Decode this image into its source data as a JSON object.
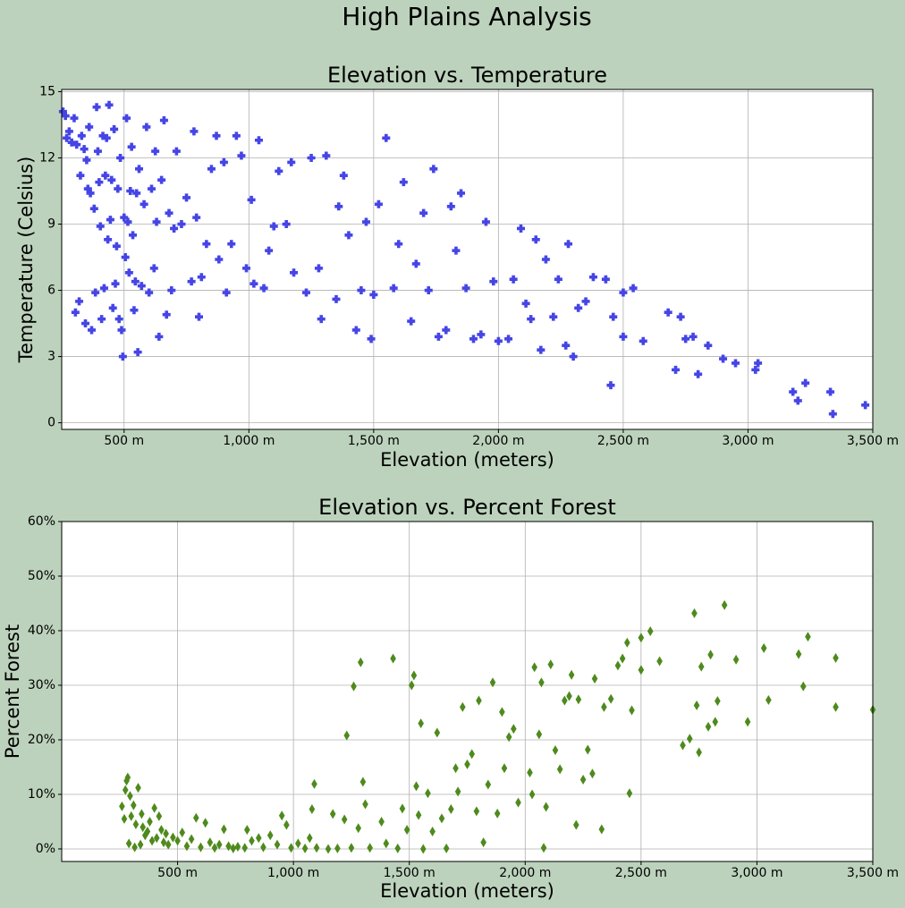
{
  "title": "High Plains Analysis",
  "chart_data": [
    {
      "type": "scatter",
      "title": "Elevation vs. Temperature",
      "x_label": "Elevation (meters)",
      "y_label": "Temperature (Celsius)",
      "grid": true,
      "marker": "plus",
      "xlim": [
        250,
        3500
      ],
      "ylim": [
        -0.3,
        15.1
      ],
      "xticks": [
        {
          "value": 500,
          "label": "500 m"
        },
        {
          "value": 1000,
          "label": "1,000 m"
        },
        {
          "value": 1500,
          "label": "1,500 m"
        },
        {
          "value": 2000,
          "label": "2,000 m"
        },
        {
          "value": 2500,
          "label": "2,500 m"
        },
        {
          "value": 3000,
          "label": "3,000 m"
        },
        {
          "value": 3500,
          "label": "3,500 m"
        }
      ],
      "yticks": [
        0,
        3,
        6,
        9,
        12,
        15
      ],
      "series": [
        {
          "color": "#4545e6",
          "x": [
            255,
            265,
            270,
            280,
            290,
            300,
            305,
            310,
            320,
            325,
            330,
            340,
            345,
            350,
            355,
            360,
            365,
            370,
            380,
            385,
            390,
            395,
            400,
            405,
            410,
            415,
            420,
            425,
            430,
            435,
            440,
            445,
            450,
            455,
            460,
            465,
            470,
            475,
            480,
            485,
            490,
            495,
            500,
            505,
            510,
            515,
            520,
            525,
            530,
            535,
            540,
            545,
            550,
            555,
            560,
            570,
            580,
            590,
            600,
            610,
            620,
            625,
            630,
            640,
            650,
            660,
            670,
            680,
            690,
            700,
            710,
            730,
            750,
            770,
            780,
            790,
            800,
            810,
            830,
            850,
            870,
            880,
            900,
            910,
            930,
            950,
            970,
            990,
            1010,
            1020,
            1040,
            1060,
            1080,
            1100,
            1120,
            1150,
            1170,
            1180,
            1230,
            1250,
            1280,
            1290,
            1310,
            1350,
            1360,
            1380,
            1400,
            1430,
            1450,
            1470,
            1490,
            1500,
            1520,
            1550,
            1580,
            1600,
            1620,
            1650,
            1670,
            1700,
            1720,
            1740,
            1760,
            1790,
            1810,
            1830,
            1850,
            1870,
            1900,
            1930,
            1950,
            1980,
            2000,
            2040,
            2060,
            2090,
            2110,
            2130,
            2150,
            2170,
            2190,
            2220,
            2240,
            2270,
            2280,
            2300,
            2320,
            2350,
            2380,
            2430,
            2450,
            2460,
            2500,
            2500,
            2540,
            2580,
            2680,
            2710,
            2730,
            2750,
            2780,
            2800,
            2840,
            2900,
            2950,
            3030,
            3040,
            3180,
            3200,
            3230,
            3330,
            3340,
            3470
          ],
          "values": [
            14.1,
            13.9,
            12.9,
            13.2,
            12.7,
            13.8,
            5.0,
            12.6,
            5.5,
            11.2,
            13.0,
            12.4,
            4.5,
            11.9,
            10.6,
            13.4,
            10.4,
            4.2,
            9.7,
            5.9,
            14.3,
            12.3,
            10.9,
            8.9,
            4.7,
            13.0,
            6.1,
            11.2,
            12.9,
            8.3,
            14.4,
            9.2,
            11.0,
            5.2,
            13.3,
            6.3,
            8.0,
            10.6,
            4.7,
            12.0,
            4.2,
            3.0,
            9.3,
            7.5,
            13.8,
            9.1,
            6.8,
            10.5,
            12.5,
            8.5,
            5.1,
            6.4,
            10.4,
            3.2,
            11.5,
            6.2,
            9.9,
            13.4,
            5.9,
            10.6,
            7.0,
            12.3,
            9.1,
            3.9,
            11.0,
            13.7,
            4.9,
            9.5,
            6.0,
            8.8,
            12.3,
            9.0,
            10.2,
            6.4,
            13.2,
            9.3,
            4.8,
            6.6,
            8.1,
            11.5,
            13.0,
            7.4,
            11.8,
            5.9,
            8.1,
            13.0,
            12.1,
            7.0,
            10.1,
            6.3,
            12.8,
            6.1,
            7.8,
            8.9,
            11.4,
            9.0,
            11.8,
            6.8,
            5.9,
            12.0,
            7.0,
            4.7,
            12.1,
            5.6,
            9.8,
            11.2,
            8.5,
            4.2,
            6.0,
            9.1,
            3.8,
            5.8,
            9.9,
            12.9,
            6.1,
            8.1,
            10.9,
            4.6,
            7.2,
            9.5,
            6.0,
            11.5,
            3.9,
            4.2,
            9.8,
            7.8,
            10.4,
            6.1,
            3.8,
            4.0,
            9.1,
            6.4,
            3.7,
            3.8,
            6.5,
            8.8,
            5.4,
            4.7,
            8.3,
            3.3,
            7.4,
            4.8,
            6.5,
            3.5,
            8.1,
            3.0,
            5.2,
            5.5,
            6.6,
            6.5,
            1.7,
            4.8,
            5.9,
            3.9,
            6.1,
            3.7,
            5.0,
            2.4,
            4.8,
            3.8,
            3.9,
            2.2,
            3.5,
            2.9,
            2.7,
            2.4,
            2.7,
            1.4,
            1.0,
            1.8,
            1.4,
            0.4,
            0.8
          ]
        }
      ]
    },
    {
      "type": "scatter",
      "title": "Elevation vs. Percent Forest",
      "x_label": "Elevation (meters)",
      "y_label": "Percent Forest",
      "grid": true,
      "marker": "thin_diamond",
      "xlim": [
        0,
        3500
      ],
      "ylim": [
        -2.3,
        60
      ],
      "xticks": [
        {
          "value": 500,
          "label": "500 m"
        },
        {
          "value": 1000,
          "label": "1,000 m"
        },
        {
          "value": 1500,
          "label": "1,500 m"
        },
        {
          "value": 2000,
          "label": "2,000 m"
        },
        {
          "value": 2500,
          "label": "2,500 m"
        },
        {
          "value": 3000,
          "label": "3,000 m"
        },
        {
          "value": 3500,
          "label": "3,500 m"
        }
      ],
      "yticks": [
        {
          "value": 0,
          "label": "0%"
        },
        {
          "value": 10,
          "label": "10%"
        },
        {
          "value": 20,
          "label": "20%"
        },
        {
          "value": 30,
          "label": "30%"
        },
        {
          "value": 40,
          "label": "40%"
        },
        {
          "value": 50,
          "label": "50%"
        },
        {
          "value": 60,
          "label": "60%"
        }
      ],
      "series": [
        {
          "color": "#4e8a1c",
          "x": [
            260,
            270,
            275,
            280,
            285,
            290,
            295,
            300,
            310,
            315,
            320,
            330,
            340,
            345,
            350,
            360,
            370,
            380,
            390,
            400,
            410,
            420,
            430,
            440,
            450,
            460,
            480,
            500,
            520,
            540,
            560,
            580,
            600,
            620,
            640,
            660,
            680,
            700,
            720,
            740,
            760,
            790,
            800,
            820,
            850,
            870,
            900,
            930,
            950,
            970,
            990,
            1020,
            1050,
            1070,
            1080,
            1090,
            1100,
            1150,
            1170,
            1190,
            1220,
            1230,
            1250,
            1260,
            1280,
            1290,
            1300,
            1310,
            1330,
            1380,
            1400,
            1430,
            1450,
            1470,
            1490,
            1510,
            1520,
            1530,
            1540,
            1550,
            1560,
            1580,
            1600,
            1620,
            1640,
            1660,
            1680,
            1700,
            1710,
            1730,
            1750,
            1770,
            1790,
            1800,
            1820,
            1840,
            1860,
            1880,
            1900,
            1910,
            1930,
            1950,
            1970,
            2020,
            2030,
            2040,
            2060,
            2070,
            2080,
            2090,
            2110,
            2130,
            2150,
            2170,
            2190,
            2200,
            2220,
            2230,
            2250,
            2270,
            2290,
            2300,
            2330,
            2340,
            2370,
            2400,
            2420,
            2440,
            2450,
            2460,
            2500,
            2500,
            2540,
            2580,
            2680,
            2710,
            2730,
            2740,
            2750,
            2760,
            2790,
            2800,
            2820,
            2830,
            2860,
            2910,
            2960,
            3030,
            3050,
            3180,
            3200,
            3220,
            3340,
            3340,
            3500
          ],
          "values": [
            7.8,
            5.5,
            10.8,
            12.5,
            13.1,
            1.0,
            9.7,
            6.0,
            8.0,
            0.3,
            4.5,
            11.2,
            0.8,
            6.4,
            4.0,
            2.5,
            3.2,
            5.0,
            1.5,
            7.5,
            2.0,
            6.0,
            3.5,
            1.2,
            2.8,
            0.8,
            2.1,
            1.5,
            3.0,
            0.5,
            1.8,
            5.7,
            0.3,
            4.8,
            1.2,
            0.2,
            0.8,
            3.6,
            0.5,
            0.1,
            0.4,
            0.2,
            3.5,
            1.5,
            2.0,
            0.3,
            2.5,
            0.8,
            6.1,
            4.4,
            0.2,
            1.0,
            0.1,
            2.0,
            7.3,
            11.9,
            0.2,
            0.0,
            6.4,
            0.1,
            5.4,
            20.8,
            0.2,
            29.8,
            3.8,
            34.2,
            12.3,
            8.2,
            0.2,
            5.0,
            1.0,
            34.9,
            0.1,
            7.4,
            3.5,
            30.0,
            31.8,
            11.5,
            6.2,
            23.0,
            0.0,
            10.2,
            3.2,
            21.3,
            5.6,
            0.1,
            7.3,
            14.8,
            10.5,
            26.0,
            15.5,
            17.4,
            6.9,
            27.2,
            1.2,
            11.8,
            30.5,
            6.5,
            25.1,
            14.8,
            20.5,
            22.0,
            8.5,
            14.0,
            10.0,
            33.3,
            21.0,
            30.5,
            0.2,
            7.7,
            33.8,
            18.1,
            14.6,
            27.2,
            28.0,
            31.9,
            4.4,
            27.4,
            12.7,
            18.2,
            13.8,
            31.2,
            3.6,
            26.0,
            27.5,
            33.6,
            34.9,
            37.8,
            10.2,
            25.4,
            38.7,
            32.8,
            39.9,
            34.4,
            19.0,
            20.2,
            43.2,
            26.3,
            17.7,
            33.4,
            22.4,
            35.6,
            23.3,
            27.1,
            44.7,
            34.7,
            23.3,
            36.8,
            27.3,
            35.7,
            29.8,
            38.9,
            26.0,
            35.0,
            25.5
          ]
        }
      ]
    }
  ]
}
